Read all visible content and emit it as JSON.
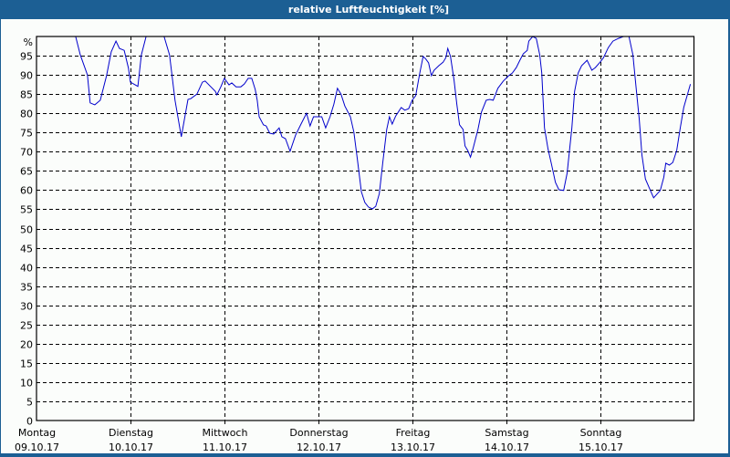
{
  "header": {
    "title": "relative Luftfeuchtigkeit [%]"
  },
  "colors": {
    "frame": "#1c5f94",
    "background": "#fbfdfb",
    "line": "#0000cc",
    "grid": "#000000",
    "axis": "#000000"
  },
  "chart_data": {
    "type": "line",
    "title": "relative Luftfeuchtigkeit [%]",
    "xlabel": "",
    "ylabel": "%",
    "ylim": [
      0,
      100
    ],
    "xlim_hours": [
      0,
      168
    ],
    "y_ticks": [
      0,
      5,
      10,
      15,
      20,
      25,
      30,
      35,
      40,
      45,
      50,
      55,
      60,
      65,
      70,
      75,
      80,
      85,
      90,
      95
    ],
    "y_top_label": "%",
    "grid": true,
    "legend": null,
    "x_ticks": [
      {
        "hour": 0,
        "day": "Montag",
        "date": "09.10.17"
      },
      {
        "hour": 24,
        "day": "Dienstag",
        "date": "10.10.17"
      },
      {
        "hour": 48,
        "day": "Mittwoch",
        "date": "11.10.17"
      },
      {
        "hour": 72,
        "day": "Donnerstag",
        "date": "12.10.17"
      },
      {
        "hour": 96,
        "day": "Freitag",
        "date": "13.10.17"
      },
      {
        "hour": 120,
        "day": "Samstag",
        "date": "14.10.17"
      },
      {
        "hour": 144,
        "day": "Sonntag",
        "date": "15.10.17"
      }
    ],
    "series": [
      {
        "name": "relative Luftfeuchtigkeit",
        "unit": "%",
        "points": [
          [
            7.7,
            100
          ],
          [
            10.0,
            100
          ],
          [
            11.2,
            95.2
          ],
          [
            13.0,
            90.0
          ],
          [
            13.7,
            82.7
          ],
          [
            14.9,
            82.2
          ],
          [
            16.3,
            83.4
          ],
          [
            17.9,
            89.8
          ],
          [
            19.1,
            96.0
          ],
          [
            20.3,
            98.8
          ],
          [
            21.2,
            96.9
          ],
          [
            22.4,
            96.4
          ],
          [
            23.5,
            91.7
          ],
          [
            24.0,
            88.1
          ],
          [
            25.9,
            87.0
          ],
          [
            26.8,
            95.2
          ],
          [
            28.0,
            100
          ],
          [
            32.6,
            100
          ],
          [
            34.0,
            95.2
          ],
          [
            35.4,
            83.4
          ],
          [
            37.0,
            73.9
          ],
          [
            38.7,
            83.6
          ],
          [
            39.4,
            83.8
          ],
          [
            41.0,
            85.0
          ],
          [
            42.4,
            88.1
          ],
          [
            43.1,
            88.4
          ],
          [
            45.7,
            85.7
          ],
          [
            46.1,
            84.8
          ],
          [
            47.1,
            86.9
          ],
          [
            48.0,
            89.1
          ],
          [
            49.2,
            87.4
          ],
          [
            49.9,
            87.9
          ],
          [
            51.0,
            86.9
          ],
          [
            52.2,
            86.9
          ],
          [
            53.1,
            87.6
          ],
          [
            54.1,
            89.1
          ],
          [
            55.0,
            89.1
          ],
          [
            55.9,
            86.2
          ],
          [
            56.4,
            83.4
          ],
          [
            56.9,
            79.1
          ],
          [
            58.0,
            77.0
          ],
          [
            58.7,
            76.7
          ],
          [
            59.6,
            74.8
          ],
          [
            60.6,
            74.6
          ],
          [
            62.0,
            76.2
          ],
          [
            62.7,
            73.9
          ],
          [
            63.6,
            73.4
          ],
          [
            64.8,
            70.1
          ],
          [
            66.2,
            74.3
          ],
          [
            67.6,
            77.2
          ],
          [
            69.0,
            80.0
          ],
          [
            69.9,
            76.7
          ],
          [
            70.8,
            79.1
          ],
          [
            72.9,
            79.1
          ],
          [
            73.9,
            76.2
          ],
          [
            75.0,
            79.1
          ],
          [
            76.0,
            82.4
          ],
          [
            76.9,
            86.5
          ],
          [
            77.8,
            85.0
          ],
          [
            78.8,
            81.9
          ],
          [
            80.2,
            79.1
          ],
          [
            81.1,
            75.1
          ],
          [
            82.0,
            67.9
          ],
          [
            83.0,
            59.6
          ],
          [
            83.9,
            56.8
          ],
          [
            84.8,
            55.6
          ],
          [
            85.8,
            55.1
          ],
          [
            86.7,
            55.8
          ],
          [
            87.6,
            59.1
          ],
          [
            88.5,
            67.2
          ],
          [
            89.5,
            75.8
          ],
          [
            90.2,
            79.1
          ],
          [
            90.9,
            77.2
          ],
          [
            91.8,
            79.3
          ],
          [
            93.2,
            81.5
          ],
          [
            94.1,
            80.8
          ],
          [
            95.1,
            81.2
          ],
          [
            96.0,
            83.4
          ],
          [
            96.9,
            84.6
          ],
          [
            97.9,
            90.3
          ],
          [
            98.8,
            94.8
          ],
          [
            99.5,
            94.1
          ],
          [
            100.2,
            93.1
          ],
          [
            100.9,
            89.8
          ],
          [
            101.6,
            91.2
          ],
          [
            102.8,
            92.4
          ],
          [
            103.9,
            93.3
          ],
          [
            104.6,
            94.5
          ],
          [
            105.1,
            96.9
          ],
          [
            105.8,
            94.8
          ],
          [
            106.7,
            88.6
          ],
          [
            107.4,
            82.4
          ],
          [
            108.1,
            77.0
          ],
          [
            109.0,
            75.8
          ],
          [
            109.5,
            71.5
          ],
          [
            110.2,
            70.3
          ],
          [
            110.9,
            68.6
          ],
          [
            111.6,
            71.0
          ],
          [
            112.8,
            75.8
          ],
          [
            113.7,
            80.3
          ],
          [
            114.9,
            83.4
          ],
          [
            115.8,
            83.6
          ],
          [
            116.7,
            83.4
          ],
          [
            117.9,
            86.5
          ],
          [
            119.3,
            88.4
          ],
          [
            120.7,
            89.8
          ],
          [
            121.6,
            90.5
          ],
          [
            122.6,
            91.9
          ],
          [
            123.5,
            93.8
          ],
          [
            124.4,
            95.5
          ],
          [
            125.4,
            96.4
          ],
          [
            125.8,
            98.8
          ],
          [
            126.8,
            100
          ],
          [
            127.7,
            99.5
          ],
          [
            128.6,
            95.2
          ],
          [
            129.1,
            90.5
          ],
          [
            129.8,
            76.2
          ],
          [
            130.7,
            70.8
          ],
          [
            131.6,
            66.7
          ],
          [
            132.6,
            62.0
          ],
          [
            133.5,
            60.1
          ],
          [
            134.7,
            59.9
          ],
          [
            135.6,
            64.4
          ],
          [
            136.8,
            76.2
          ],
          [
            137.5,
            85.7
          ],
          [
            138.4,
            90.5
          ],
          [
            139.3,
            92.4
          ],
          [
            140.7,
            93.8
          ],
          [
            141.9,
            91.2
          ],
          [
            142.8,
            91.9
          ],
          [
            144.0,
            93.3
          ],
          [
            144.9,
            94.5
          ],
          [
            146.1,
            97.1
          ],
          [
            147.3,
            98.8
          ],
          [
            148.7,
            99.5
          ],
          [
            150.0,
            100
          ],
          [
            151.4,
            100
          ],
          [
            152.4,
            95.2
          ],
          [
            153.3,
            85.7
          ],
          [
            154.0,
            78.6
          ],
          [
            154.7,
            69.1
          ],
          [
            155.6,
            62.9
          ],
          [
            157.0,
            59.6
          ],
          [
            157.7,
            58.0
          ],
          [
            159.4,
            59.9
          ],
          [
            160.3,
            63.4
          ],
          [
            160.8,
            67.0
          ],
          [
            161.7,
            66.5
          ],
          [
            162.6,
            67.2
          ],
          [
            163.6,
            70.3
          ],
          [
            164.5,
            76.2
          ],
          [
            165.4,
            81.5
          ],
          [
            167.1,
            87.6
          ]
        ]
      }
    ]
  }
}
